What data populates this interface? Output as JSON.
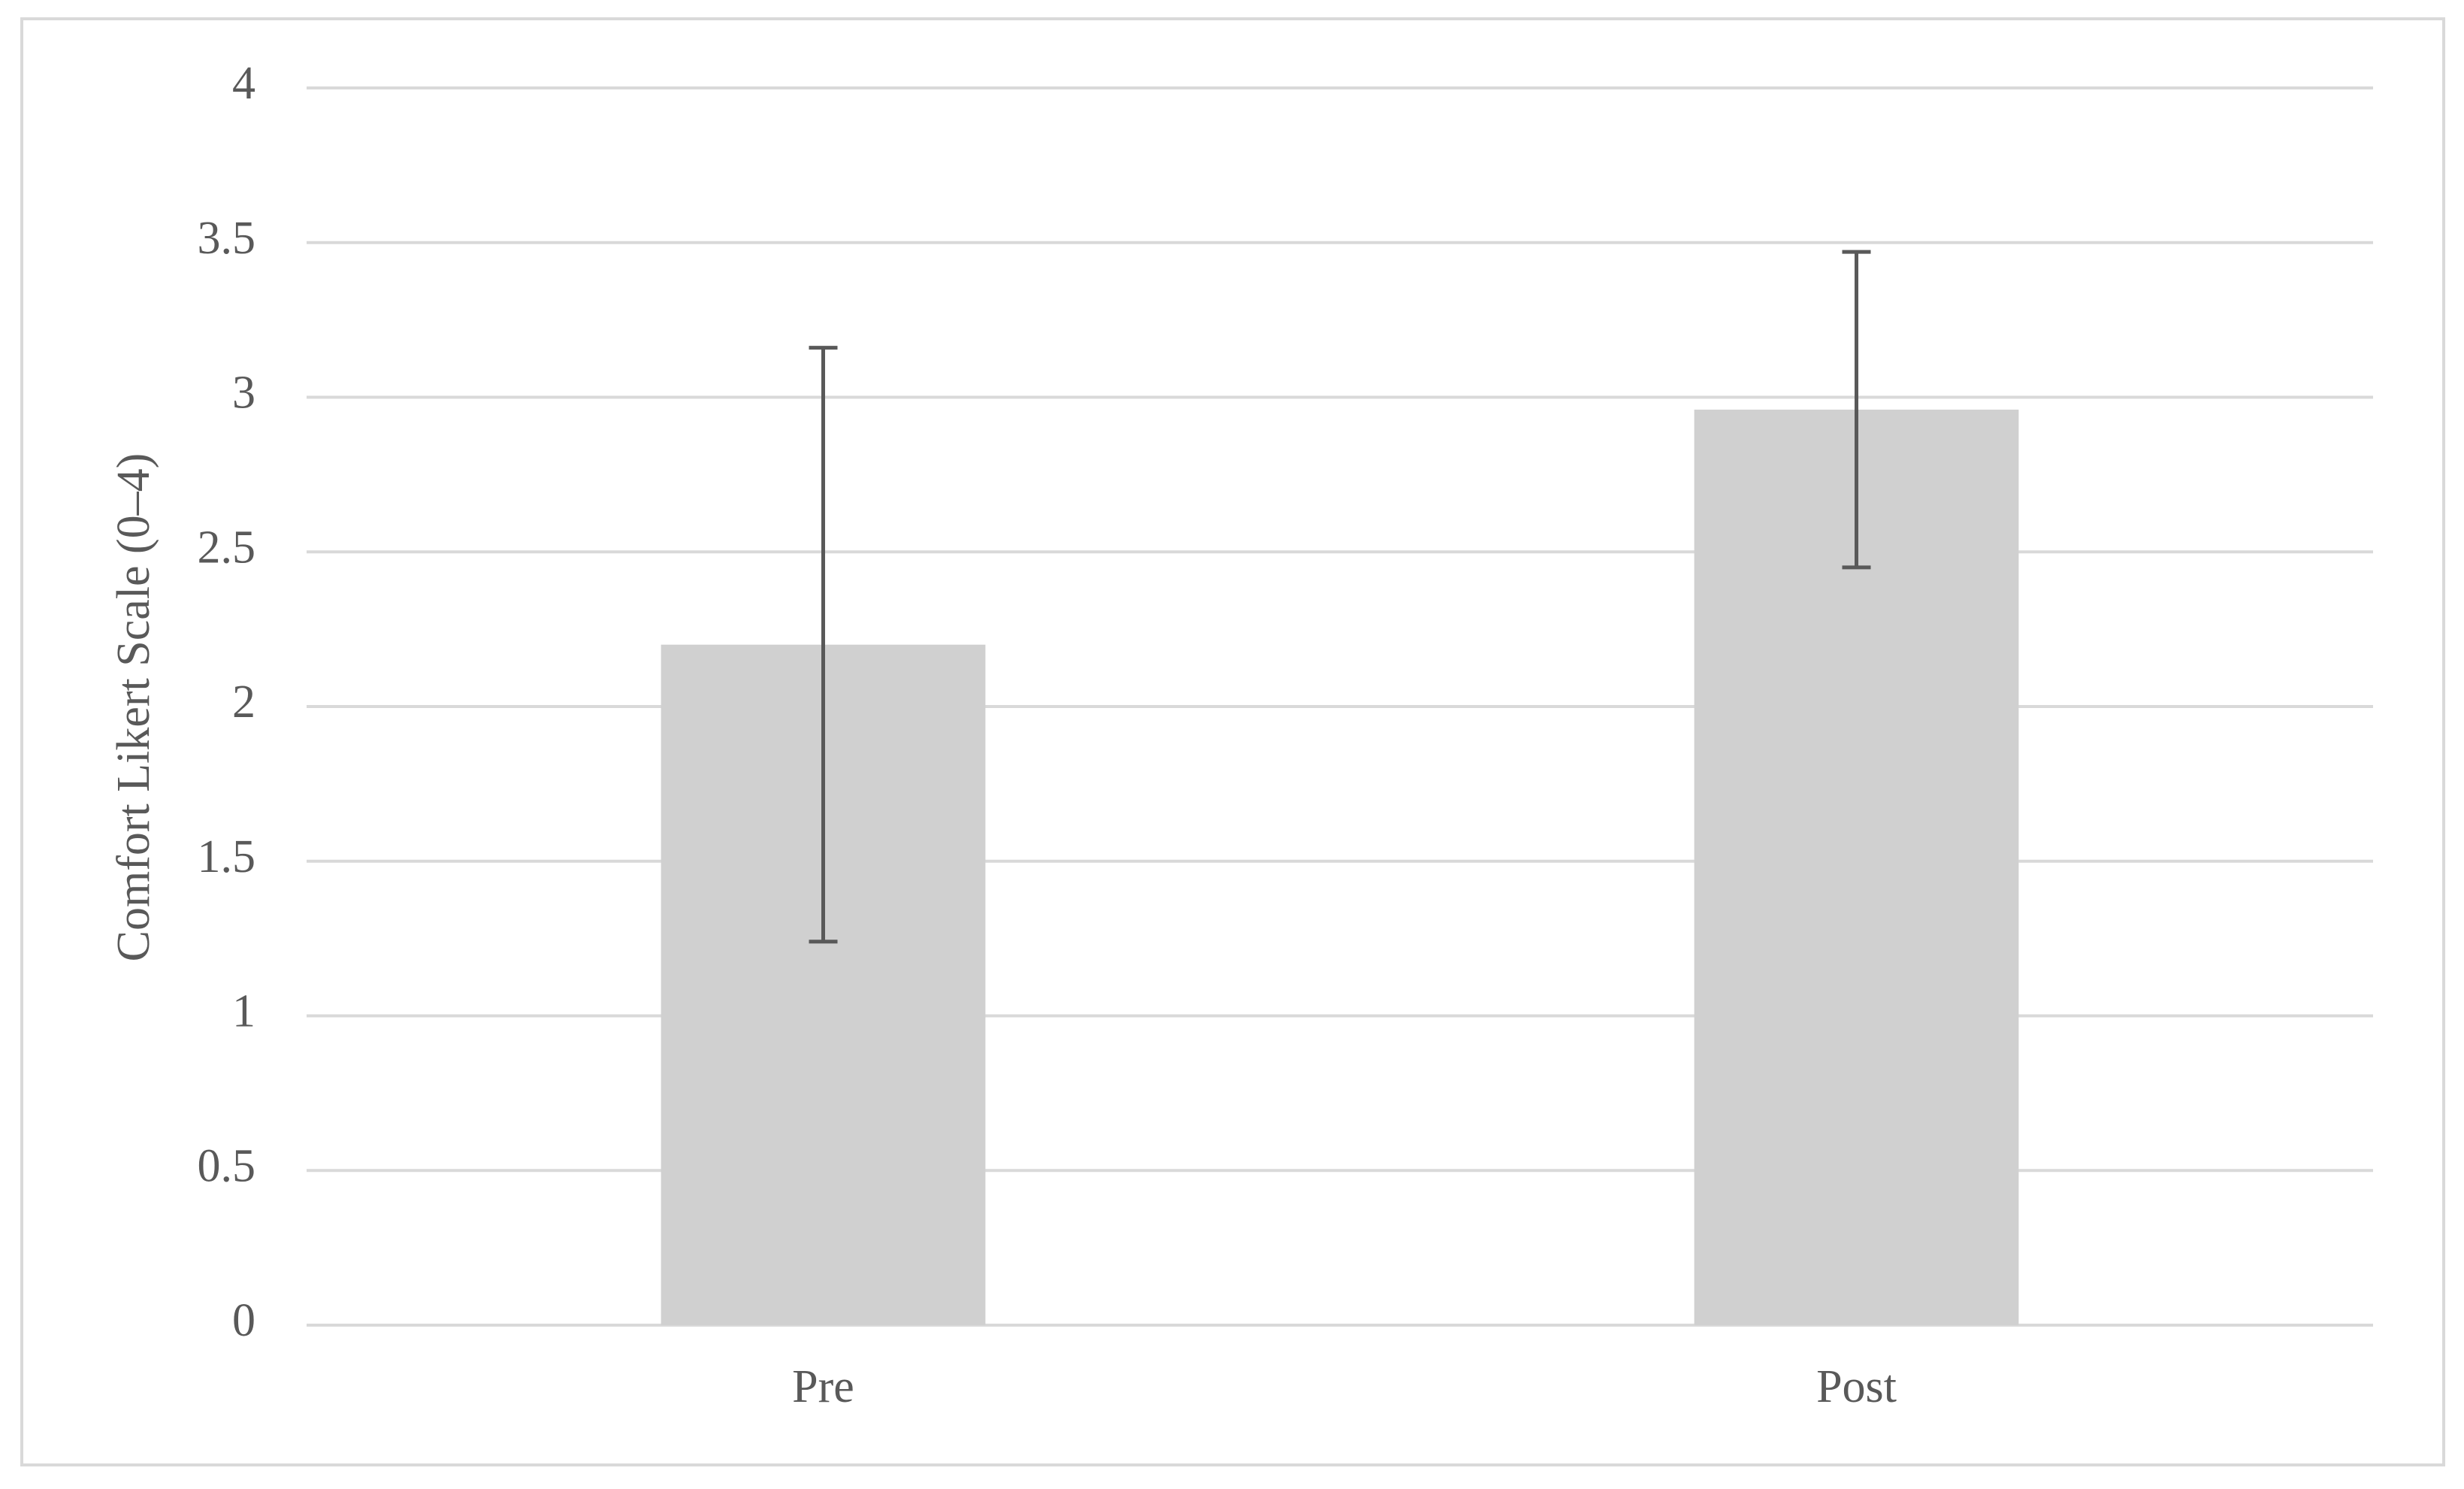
{
  "chart_data": {
    "type": "bar",
    "y_label": "Comfort Likert Scale (0–4)",
    "categories": [
      "Pre",
      "Post"
    ],
    "values": [
      2.2,
      2.96
    ],
    "errors": [
      0.96,
      0.51
    ],
    "color": "#d0d0d0",
    "error_color": "#595959",
    "ylim": [
      0,
      4
    ],
    "yticks": [
      0,
      0.5,
      1,
      1.5,
      2,
      2.5,
      3,
      3.5,
      4
    ],
    "grid": true
  }
}
